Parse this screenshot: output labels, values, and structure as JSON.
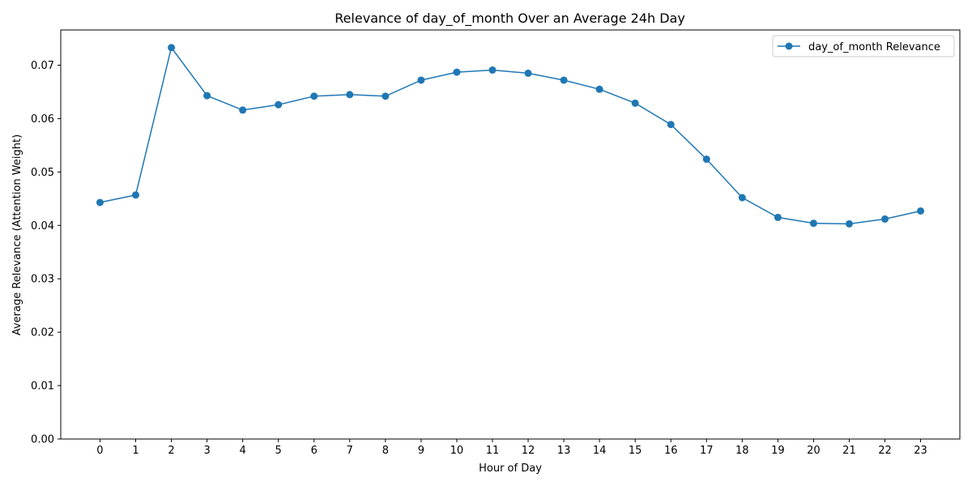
{
  "chart_data": {
    "type": "line",
    "title": "Relevance of day_of_month Over an Average 24h Day",
    "xlabel": "Hour of Day",
    "ylabel": "Average Relevance (Attention Weight)",
    "x": [
      0,
      1,
      2,
      3,
      4,
      5,
      6,
      7,
      8,
      9,
      10,
      11,
      12,
      13,
      14,
      15,
      16,
      17,
      18,
      19,
      20,
      21,
      22,
      23
    ],
    "xticks": [
      "0",
      "1",
      "2",
      "3",
      "4",
      "5",
      "6",
      "7",
      "8",
      "9",
      "10",
      "11",
      "12",
      "13",
      "14",
      "15",
      "16",
      "17",
      "18",
      "19",
      "20",
      "21",
      "22",
      "23"
    ],
    "yticks": [
      "0.00",
      "0.01",
      "0.02",
      "0.03",
      "0.04",
      "0.05",
      "0.06",
      "0.07"
    ],
    "ytick_values": [
      0,
      0.01,
      0.02,
      0.03,
      0.04,
      0.05,
      0.06,
      0.07
    ],
    "ylim": [
      0,
      0.0766
    ],
    "xlim": [
      -1.1,
      24.1
    ],
    "grid": false,
    "legend_position": "top-right",
    "series": [
      {
        "name": "day_of_month Relevance",
        "color": "#1f77b4",
        "marker": "circle",
        "values": [
          0.0443,
          0.0457,
          0.0733,
          0.0643,
          0.0616,
          0.0626,
          0.0642,
          0.0645,
          0.0642,
          0.0672,
          0.0687,
          0.0691,
          0.0685,
          0.0672,
          0.0655,
          0.0629,
          0.0589,
          0.0524,
          0.0452,
          0.0415,
          0.0404,
          0.0403,
          0.0412,
          0.0427
        ]
      }
    ]
  }
}
